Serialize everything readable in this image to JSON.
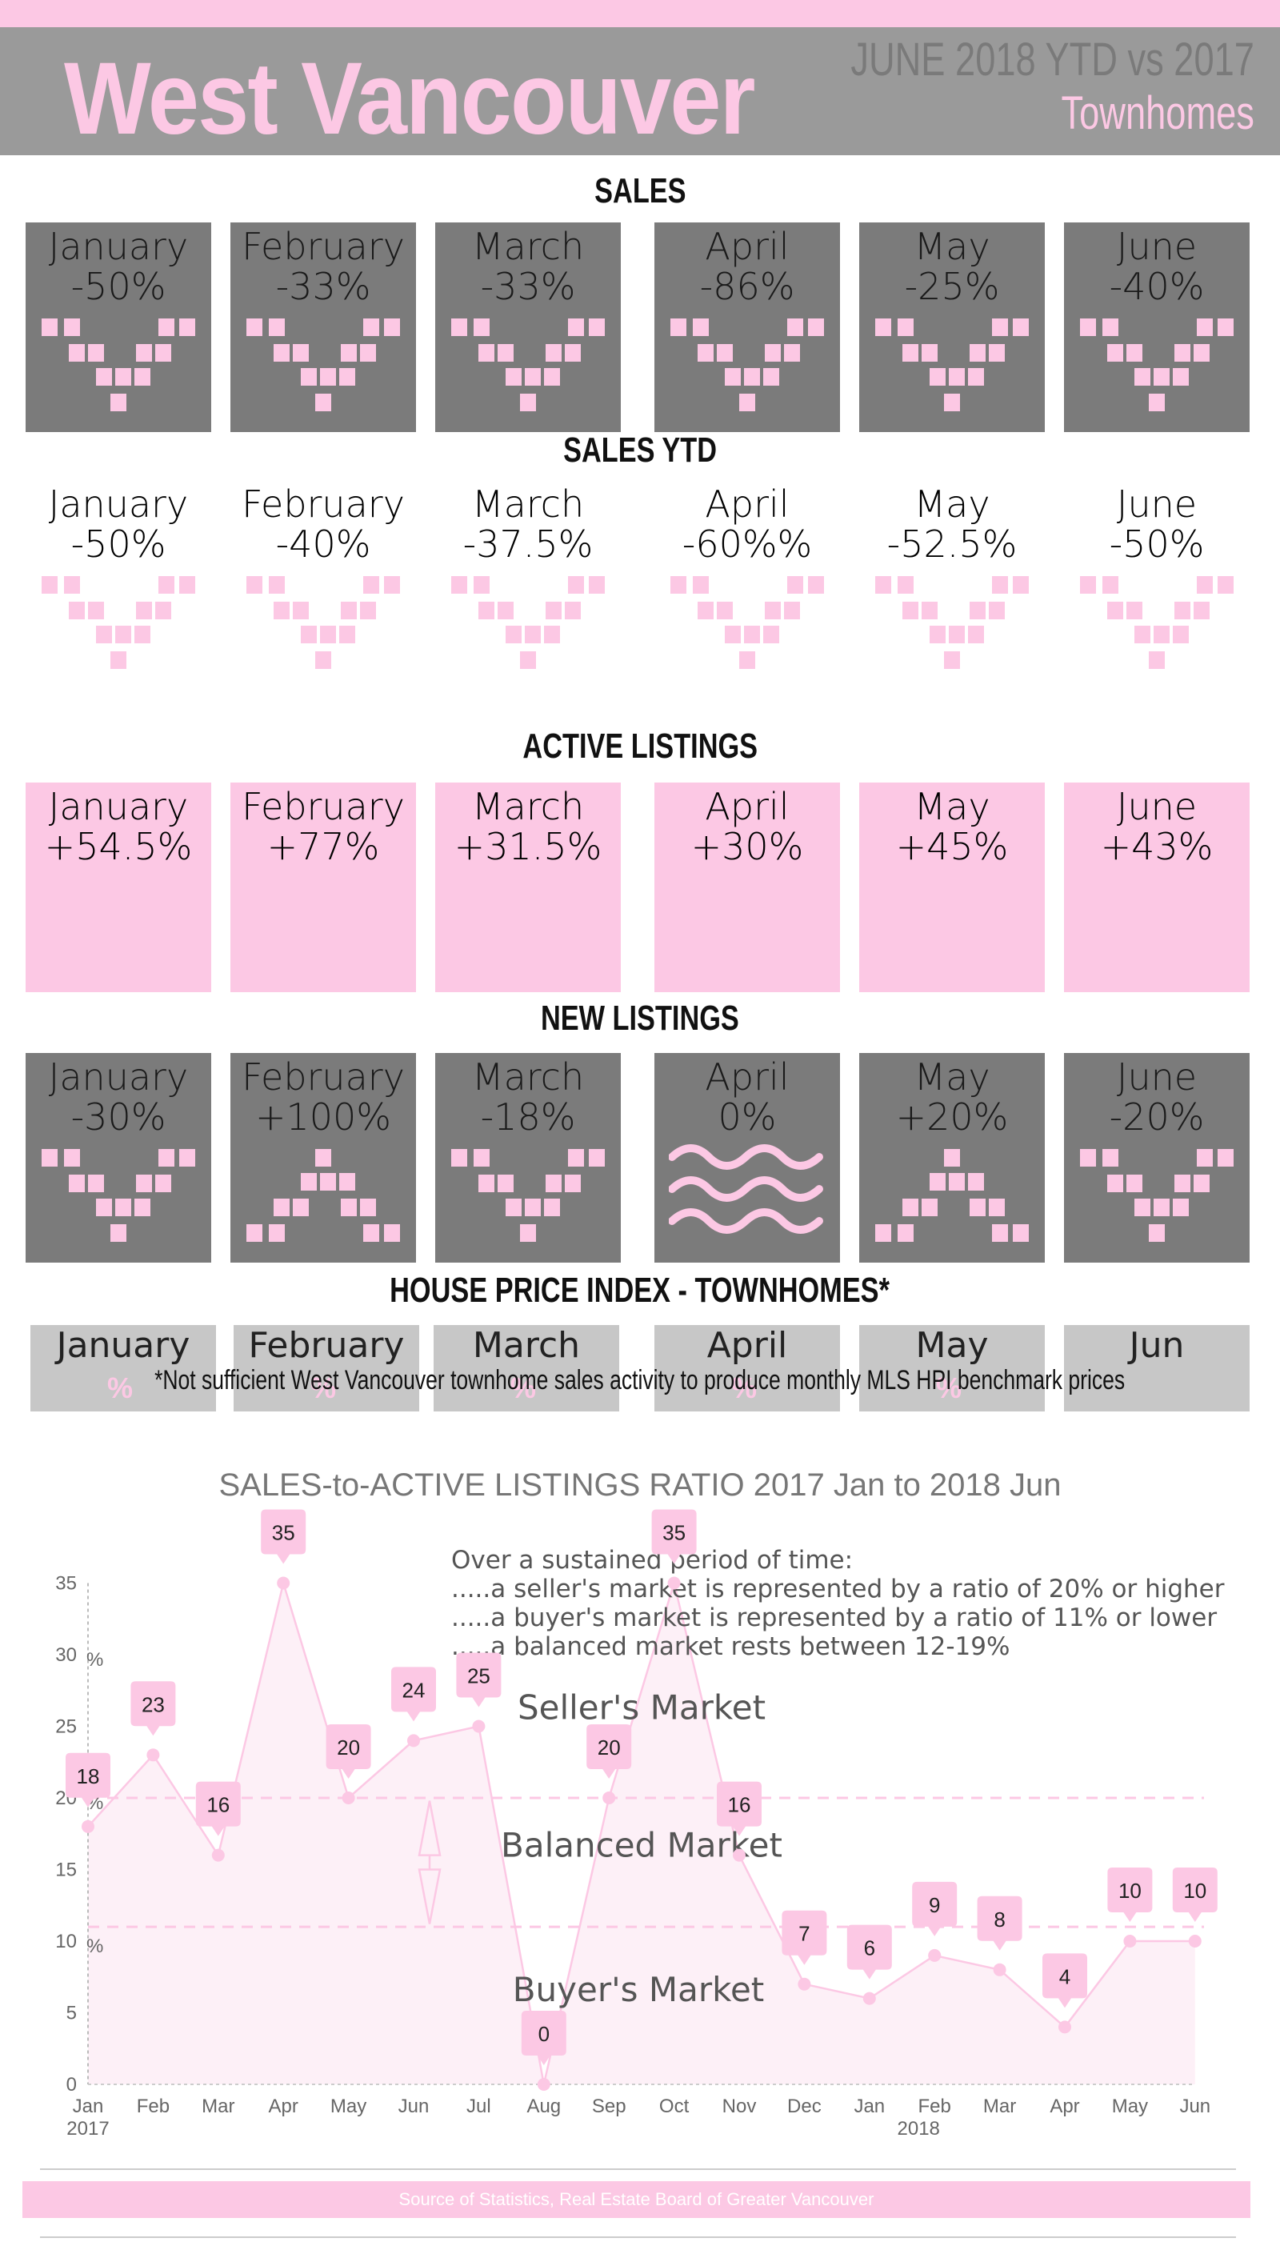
{
  "header": {
    "title": "West Vancouver",
    "period": "JUNE 2018 YTD vs 2017",
    "property_type": "Townhomes"
  },
  "colors": {
    "pink": "#fcc8e4",
    "dark_tile": "#7b7b7b",
    "header_bg": "#9a9a9a",
    "hpi_tile": "#c7c7c7"
  },
  "sections": {
    "sales": {
      "title": "SALES",
      "tiles": [
        {
          "month": "January",
          "value": "-50%",
          "icon": "down-arrow-icon"
        },
        {
          "month": "February",
          "value": "-33%",
          "icon": "down-arrow-icon"
        },
        {
          "month": "March",
          "value": "-33%",
          "icon": "down-arrow-icon"
        },
        {
          "month": "April",
          "value": "-86%",
          "icon": "down-arrow-icon"
        },
        {
          "month": "May",
          "value": "-25%",
          "icon": "down-arrow-icon"
        },
        {
          "month": "June",
          "value": "-40%",
          "icon": "down-arrow-icon"
        }
      ]
    },
    "sales_ytd": {
      "title": "SALES YTD",
      "tiles": [
        {
          "month": "January",
          "value": "-50%",
          "icon": "down-arrow-icon"
        },
        {
          "month": "February",
          "value": "-40%",
          "icon": "down-arrow-icon"
        },
        {
          "month": "March",
          "value": "-37.5%",
          "icon": "down-arrow-icon"
        },
        {
          "month": "April",
          "value": "-60%%",
          "icon": "down-arrow-icon"
        },
        {
          "month": "May",
          "value": "-52.5%",
          "icon": "down-arrow-icon"
        },
        {
          "month": "June",
          "value": "-50%",
          "icon": "down-arrow-icon"
        }
      ]
    },
    "active_listings": {
      "title": "ACTIVE LISTINGS",
      "tiles": [
        {
          "month": "January",
          "value": "+54.5%",
          "icon": "up-arrow-icon"
        },
        {
          "month": "February",
          "value": "+77%",
          "icon": "up-arrow-icon"
        },
        {
          "month": "March",
          "value": "+31.5%",
          "icon": "up-arrow-icon"
        },
        {
          "month": "April",
          "value": "+30%",
          "icon": "up-arrow-icon"
        },
        {
          "month": "May",
          "value": "+45%",
          "icon": "up-arrow-icon"
        },
        {
          "month": "June",
          "value": "+43%",
          "icon": "up-arrow-icon"
        }
      ]
    },
    "new_listings": {
      "title": "NEW LISTINGS",
      "tiles": [
        {
          "month": "January",
          "value": "-30%",
          "icon": "down-arrow-icon"
        },
        {
          "month": "February",
          "value": "+100%",
          "icon": "up-arrow-icon"
        },
        {
          "month": "March",
          "value": "-18%",
          "icon": "down-arrow-icon"
        },
        {
          "month": "April",
          "value": "0%",
          "icon": "wave-icon"
        },
        {
          "month": "May",
          "value": "+20%",
          "icon": "up-arrow-icon"
        },
        {
          "month": "June",
          "value": "-20%",
          "icon": "down-arrow-icon"
        }
      ]
    },
    "hpi": {
      "title": "HOUSE PRICE INDEX - TOWNHOMES*",
      "months": [
        "January",
        "February",
        "March",
        "April",
        "May",
        "Jun"
      ],
      "pct_symbol": "%",
      "note": "*Not sufficient West Vancouver townhome sales activity to produce monthly MLS HPI benchmark prices"
    }
  },
  "ratio_chart": {
    "title": "SALES-to-ACTIVE LISTINGS RATIO 2017 Jan to 2018 Jun",
    "notes": [
      "Over a sustained period of time:",
      ".....a seller's market is represented by a ratio of 20% or higher",
      ".....a buyer's market is represented by a ratio of 11% or lower",
      ".....a balanced market rests between 12-19%"
    ],
    "zones": {
      "seller": "Seller's Market",
      "balanced": "Balanced Market",
      "buyer": "Buyer's Market"
    },
    "pct_marks": [
      "%",
      "%",
      "%"
    ],
    "year_labels": [
      "2017",
      "2018"
    ]
  },
  "chart_data": {
    "type": "area",
    "title": "SALES-to-ACTIVE LISTINGS RATIO 2017 Jan to 2018 Jun",
    "categories": [
      "Jan",
      "Feb",
      "Mar",
      "Apr",
      "May",
      "Jun",
      "Jul",
      "Aug",
      "Sep",
      "Oct",
      "Nov",
      "Dec",
      "Jan",
      "Feb",
      "Mar",
      "Apr",
      "May",
      "Jun"
    ],
    "values": [
      18,
      23,
      16,
      35,
      20,
      24,
      25,
      0,
      20,
      35,
      16,
      7,
      6,
      9,
      8,
      4,
      10,
      10
    ],
    "ylim": [
      0,
      35
    ],
    "yticks": [
      0,
      5,
      10,
      15,
      20,
      25,
      30,
      35
    ],
    "reference_lines": [
      20,
      11
    ],
    "grid": false,
    "color": "#fcc8e4"
  },
  "footer": {
    "source": "Source of Statistics, Real Estate Board of Greater Vancouver"
  }
}
